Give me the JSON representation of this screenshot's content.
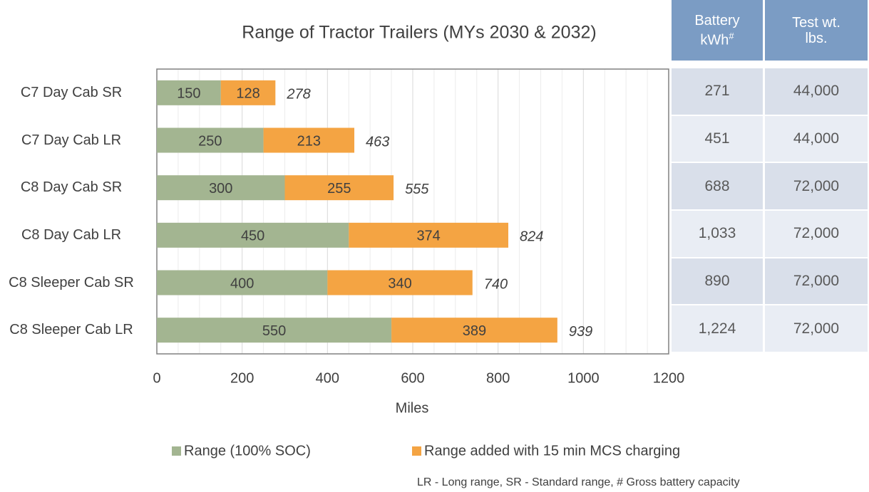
{
  "chart_data": {
    "type": "stacked_barh",
    "title": "Range of Tractor Trailers (MYs 2030 & 2032)",
    "categories": [
      "C7 Day Cab SR",
      "C7 Day Cab LR",
      "C8 Day Cab SR",
      "C8 Day Cab LR",
      "C8 Sleeper Cab SR",
      "C8 Sleeper Cab LR"
    ],
    "series": [
      {
        "name": "Range (100% SOC)",
        "color": "#a3b591",
        "values": [
          150,
          250,
          300,
          450,
          400,
          550
        ]
      },
      {
        "name": "Range added with 15 min MCS charging",
        "color": "#f4a443",
        "values": [
          128,
          213,
          255,
          374,
          340,
          389
        ]
      }
    ],
    "totals": [
      278,
      463,
      555,
      824,
      740,
      939
    ],
    "xlabel": "Miles",
    "xlim": [
      0,
      1200
    ],
    "xticks": [
      0,
      200,
      400,
      600,
      800,
      1000,
      1200
    ],
    "xminorticks": [
      50,
      100,
      150,
      250,
      300,
      350,
      450,
      500,
      550,
      650,
      700,
      750,
      850,
      900,
      950,
      1050,
      1100,
      1150
    ],
    "grid": true,
    "legend": "bottom",
    "footnote": "LR - Long range, SR - Standard range, # Gross battery capacity"
  },
  "table": {
    "columns": [
      {
        "text": "Battery kWh",
        "sup": "#"
      },
      {
        "text": "Test wt. lbs."
      }
    ],
    "rows": [
      [
        "271",
        "44,000"
      ],
      [
        "451",
        "44,000"
      ],
      [
        "688",
        "72,000"
      ],
      [
        "1,033",
        "72,000"
      ],
      [
        "890",
        "72,000"
      ],
      [
        "1,224",
        "72,000"
      ]
    ]
  }
}
